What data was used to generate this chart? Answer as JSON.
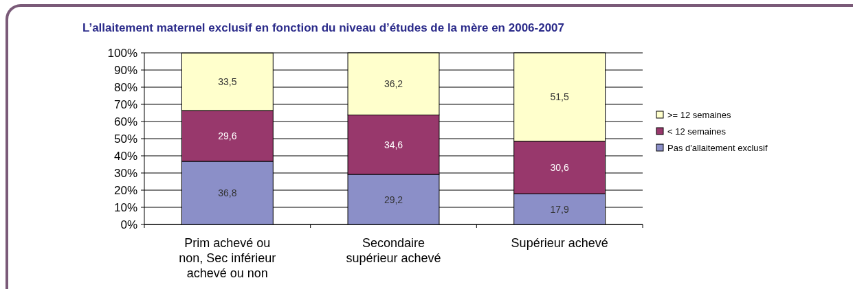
{
  "chart_data": {
    "type": "bar",
    "title": "L’allaitement maternel exclusif en fonction du niveau d’études de la mère en 2006-2007",
    "categories": [
      "Prim achevé ou non, Sec inférieur achevé ou non",
      "Secondaire supérieur achevé",
      "Supérieur achevé"
    ],
    "stacked": true,
    "series": [
      {
        "name": "Pas d'allaitement exclusif",
        "color": "#8b8fc8",
        "values": [
          36.8,
          29.2,
          17.9
        ],
        "value_labels": [
          "36,8",
          "29,2",
          "17,9"
        ]
      },
      {
        "name": "< 12 semaines",
        "color": "#98386c",
        "values": [
          29.6,
          34.6,
          30.6
        ],
        "value_labels": [
          "29,6",
          "34,6",
          "30,6"
        ]
      },
      {
        "name": ">= 12 semaines",
        "color": "#ffffcc",
        "values": [
          33.5,
          36.2,
          51.5
        ],
        "value_labels": [
          "33,5",
          "36,2",
          "51,5"
        ]
      }
    ],
    "ylim": [
      0,
      100
    ],
    "yticks": [
      {
        "value": 0,
        "label": "0%"
      },
      {
        "value": 10,
        "label": "10%"
      },
      {
        "value": 20,
        "label": "20%"
      },
      {
        "value": 30,
        "label": "30%"
      },
      {
        "value": 40,
        "label": "40%"
      },
      {
        "value": 50,
        "label": "50%"
      },
      {
        "value": 60,
        "label": "60%"
      },
      {
        "value": 70,
        "label": "70%"
      },
      {
        "value": 80,
        "label": "80%"
      },
      {
        "value": 90,
        "label": "90%"
      },
      {
        "value": 100,
        "label": "100%"
      }
    ],
    "grid": "y",
    "legend": "right"
  }
}
